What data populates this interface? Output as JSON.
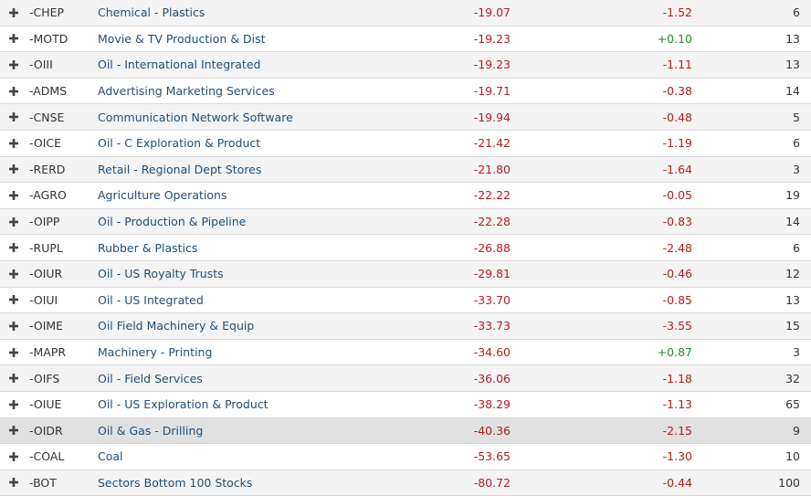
{
  "colors": {
    "negative": "#b81c1c",
    "positive": "#2a8a2a",
    "link": "#1f4e79",
    "row_highlight": "#e1e1e1"
  },
  "expand_icon": "plus-icon",
  "rows": [
    {
      "symbol": "-CHEP",
      "name": "Chemical - Plastics",
      "change1": "-19.07",
      "change2": "-1.52",
      "count": "6"
    },
    {
      "symbol": "-MOTD",
      "name": "Movie & TV Production & Dist",
      "change1": "-19.23",
      "change2": "+0.10",
      "count": "13"
    },
    {
      "symbol": "-OIII",
      "name": "Oil - International Integrated",
      "change1": "-19.23",
      "change2": "-1.11",
      "count": "13"
    },
    {
      "symbol": "-ADMS",
      "name": "Advertising Marketing Services",
      "change1": "-19.71",
      "change2": "-0.38",
      "count": "14"
    },
    {
      "symbol": "-CNSE",
      "name": "Communication Network Software",
      "change1": "-19.94",
      "change2": "-0.48",
      "count": "5"
    },
    {
      "symbol": "-OICE",
      "name": "Oil - C Exploration & Product",
      "change1": "-21.42",
      "change2": "-1.19",
      "count": "6"
    },
    {
      "symbol": "-RERD",
      "name": "Retail - Regional Dept Stores",
      "change1": "-21.80",
      "change2": "-1.64",
      "count": "3"
    },
    {
      "symbol": "-AGRO",
      "name": "Agriculture Operations",
      "change1": "-22.22",
      "change2": "-0.05",
      "count": "19"
    },
    {
      "symbol": "-OIPP",
      "name": "Oil - Production & Pipeline",
      "change1": "-22.28",
      "change2": "-0.83",
      "count": "14"
    },
    {
      "symbol": "-RUPL",
      "name": "Rubber & Plastics",
      "change1": "-26.88",
      "change2": "-2.48",
      "count": "6"
    },
    {
      "symbol": "-OIUR",
      "name": "Oil - US Royalty Trusts",
      "change1": "-29.81",
      "change2": "-0.46",
      "count": "12"
    },
    {
      "symbol": "-OIUI",
      "name": "Oil - US Integrated",
      "change1": "-33.70",
      "change2": "-0.85",
      "count": "13"
    },
    {
      "symbol": "-OIME",
      "name": "Oil Field Machinery & Equip",
      "change1": "-33.73",
      "change2": "-3.55",
      "count": "15"
    },
    {
      "symbol": "-MAPR",
      "name": "Machinery - Printing",
      "change1": "-34.60",
      "change2": "+0.87",
      "count": "3"
    },
    {
      "symbol": "-OIFS",
      "name": "Oil - Field Services",
      "change1": "-36.06",
      "change2": "-1.18",
      "count": "32"
    },
    {
      "symbol": "-OIUE",
      "name": "Oil - US Exploration & Product",
      "change1": "-38.29",
      "change2": "-1.13",
      "count": "65"
    },
    {
      "symbol": "-OIDR",
      "name": "Oil & Gas - Drilling",
      "change1": "-40.36",
      "change2": "-2.15",
      "count": "9",
      "highlighted": true
    },
    {
      "symbol": "-COAL",
      "name": "Coal",
      "change1": "-53.65",
      "change2": "-1.30",
      "count": "10"
    },
    {
      "symbol": "-BOT",
      "name": "Sectors Bottom 100 Stocks",
      "change1": "-80.72",
      "change2": "-0.44",
      "count": "100"
    }
  ]
}
